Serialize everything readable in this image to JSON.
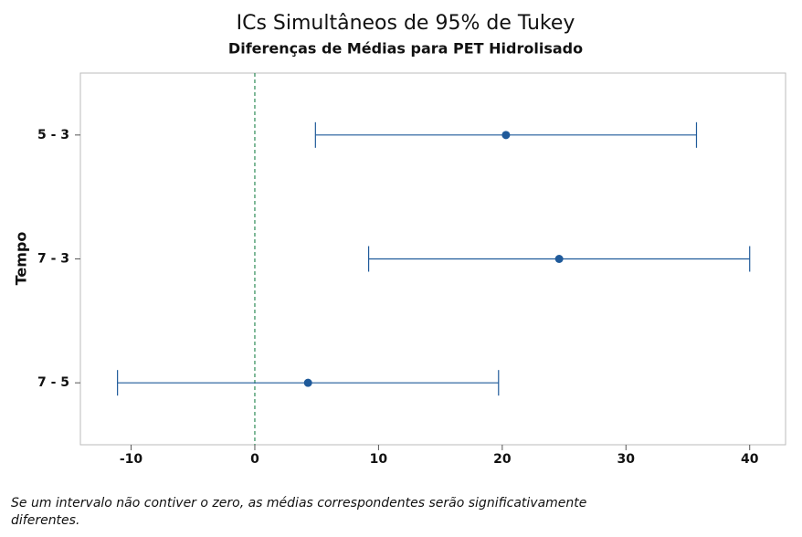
{
  "chart_data": {
    "type": "interval",
    "title": "ICs Simultâneos de 95% de Tukey",
    "subtitle": "Diferenças de Médias para PET Hidrolisado",
    "y_label": "Tempo",
    "note": "Se um intervalo não contiver o zero, as médias correspondentes serão significativamente diferentes.",
    "categories": [
      "5 - 3",
      "7 - 3",
      "7 - 5"
    ],
    "values": [
      20.3,
      24.6,
      4.3
    ],
    "errors": [
      15.4,
      15.4,
      15.4
    ],
    "color": "#1f5a9a",
    "reference_x": 0,
    "reference_color": "#2e8b57",
    "xlim": [
      -14.1,
      42.9
    ],
    "xticks": [
      -10,
      0,
      10,
      20,
      30,
      40
    ]
  }
}
